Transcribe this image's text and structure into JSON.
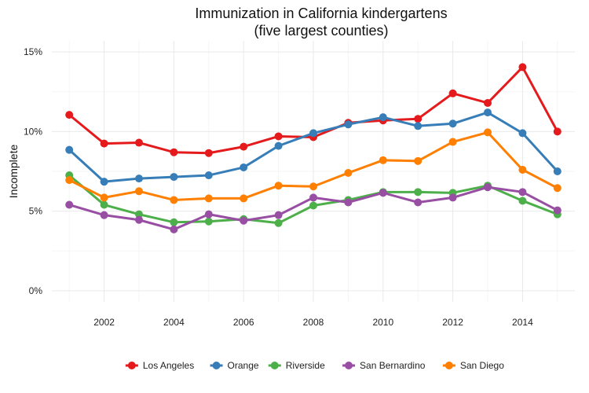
{
  "chart_data": {
    "type": "line",
    "title": "Immunization in California kindergartens",
    "subtitle": "(five largest counties)",
    "xlabel": "",
    "ylabel": "Incomplete",
    "x": [
      2001,
      2002,
      2003,
      2004,
      2005,
      2006,
      2007,
      2008,
      2009,
      2010,
      2011,
      2012,
      2013,
      2014,
      2015
    ],
    "xticks": [
      2002,
      2004,
      2006,
      2008,
      2010,
      2012,
      2014
    ],
    "xtick_labels": [
      "2002",
      "2004",
      "2006",
      "2008",
      "2010",
      "2012",
      "2014"
    ],
    "ylim": [
      0,
      15
    ],
    "yticks": [
      0,
      5,
      10,
      15
    ],
    "ytick_labels": [
      "0%",
      "5%",
      "10%",
      "15%"
    ],
    "grid": true,
    "legend_position": "bottom",
    "series": [
      {
        "name": "Los Angeles",
        "color": "#e41a1c",
        "values": [
          11.05,
          9.25,
          9.3,
          8.7,
          8.65,
          9.05,
          9.7,
          9.65,
          10.55,
          10.7,
          10.8,
          12.4,
          11.8,
          14.05,
          10.0
        ]
      },
      {
        "name": "Orange",
        "color": "#377eb8",
        "values": [
          8.85,
          6.85,
          7.05,
          7.15,
          7.25,
          7.75,
          9.1,
          9.9,
          10.45,
          10.9,
          10.35,
          10.5,
          11.2,
          9.9,
          7.5
        ]
      },
      {
        "name": "Riverside",
        "color": "#4daf4a",
        "values": [
          7.25,
          5.4,
          4.8,
          4.3,
          4.35,
          4.5,
          4.25,
          5.35,
          5.7,
          6.2,
          6.2,
          6.15,
          6.6,
          5.65,
          4.8
        ]
      },
      {
        "name": "San Bernardino",
        "color": "#984ea3",
        "values": [
          5.4,
          4.75,
          4.45,
          3.85,
          4.8,
          4.4,
          4.75,
          5.85,
          5.55,
          6.15,
          5.55,
          5.85,
          6.5,
          6.2,
          5.05
        ]
      },
      {
        "name": "San Diego",
        "color": "#ff7f00",
        "values": [
          6.95,
          5.85,
          6.25,
          5.7,
          5.8,
          5.8,
          6.6,
          6.55,
          7.4,
          8.2,
          8.15,
          9.35,
          9.95,
          7.6,
          6.45
        ]
      }
    ]
  }
}
